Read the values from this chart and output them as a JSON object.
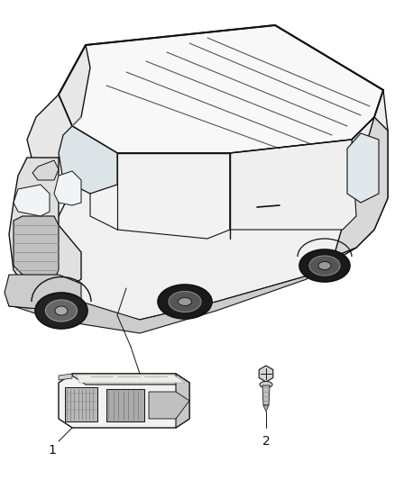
{
  "background_color": "#ffffff",
  "line_color": "#1a1a1a",
  "dark_line": "#111111",
  "gray1": "#e8e8e8",
  "gray2": "#d0d0d0",
  "gray3": "#b0b0b0",
  "gray4": "#888888",
  "gray5": "#555555",
  "label_1": "1",
  "label_2": "2",
  "label_fontsize": 10,
  "fig_width": 4.38,
  "fig_height": 5.33,
  "dpi": 100
}
